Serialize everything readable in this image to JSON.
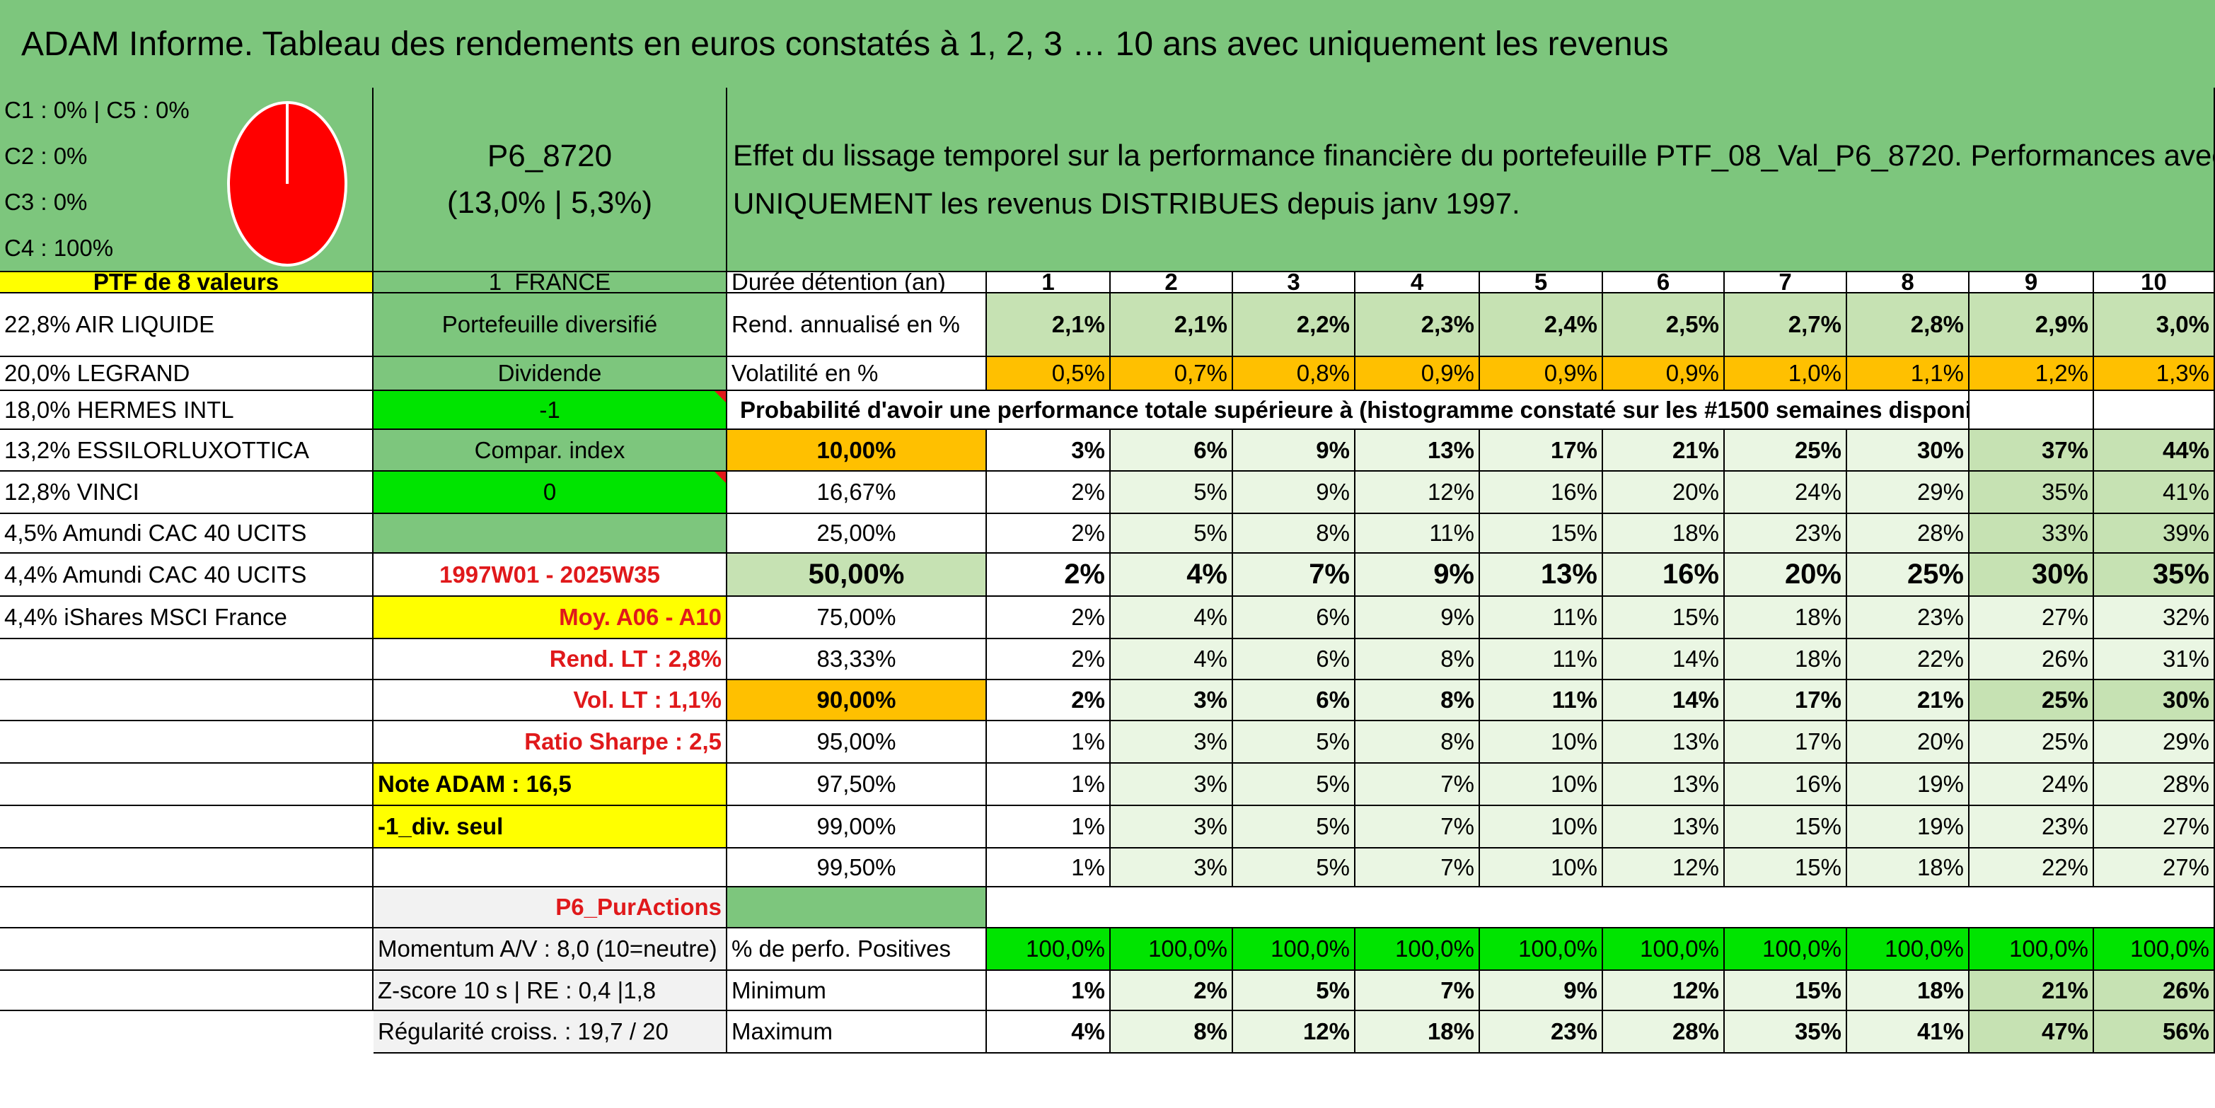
{
  "title": "ADAM Informe. Tableau des rendements en euros constatés à 1, 2, 3 … 10 ans avec uniquement les revenus",
  "colors": {
    "header_green": "#7dc67d",
    "bright_green": "#00e400",
    "light_green": "#c6e2b3",
    "pale_green": "#eaf6e3",
    "yellow": "#ffff00",
    "orange": "#ffc000",
    "red": "#e0191b",
    "pie_red": "#ff0000"
  },
  "pie": {
    "label": "C4 : 100%",
    "value_percent": 100
  },
  "class_lines": [
    "C1 : 0% | C5 : 0%",
    "C2 : 0%",
    "C3 : 0%",
    "C4 : 100%"
  ],
  "portfolio": {
    "code": "P6_8720",
    "perf": "(13,0% | 5,3%)"
  },
  "description": [
    "Effet du lissage temporel sur la performance financière du portefeuille PTF_08_Val_P6_8720. Performances avec",
    "UNIQUEMENT les revenus DISTRIBUES depuis janv 1997."
  ],
  "ptf_header": "PTF de 8 valeurs",
  "holdings": [
    "22,8% AIR LIQUIDE",
    "20,0% LEGRAND",
    "18,0% HERMES INTL",
    "13,2% ESSILORLUXOTTICA",
    "12,8% VINCI",
    "4,5% Amundi CAC 40 UCITS",
    "4,4% Amundi CAC 40 UCITS",
    "4,4% iShares MSCI France"
  ],
  "info": {
    "country": "1_FRANCE",
    "type": "Portefeuille diversifié",
    "dividende_label": "Dividende",
    "dividende_value": "-1",
    "compar_label": "Compar. index",
    "compar_value": "0",
    "period": "1997W01 - 2025W35",
    "moy": "Moy. A06 - A10",
    "rend_lt": "Rend. LT : 2,8%",
    "vol_lt": "Vol. LT : 1,1%",
    "sharpe": "Ratio Sharpe : 2,5",
    "note": "Note ADAM : 16,5",
    "div_seul": "-1_div. seul",
    "pur": "P6_PurActions",
    "momentum": "Momentum A/V : 8,0 (10=neutre)",
    "zscore": "Z-score 10 s | RE : 0,4 |1,8",
    "regularite": "Régularité croiss. : 19,7 / 20"
  },
  "table": {
    "duration_label": "Durée détention (an)",
    "years": [
      "1",
      "2",
      "3",
      "4",
      "5",
      "6",
      "7",
      "8",
      "9",
      "10"
    ],
    "rend_label": "Rend. annualisé en %",
    "rend": [
      "2,1%",
      "2,1%",
      "2,2%",
      "2,3%",
      "2,4%",
      "2,5%",
      "2,7%",
      "2,8%",
      "2,9%",
      "3,0%"
    ],
    "vol_label": "Volatilité en %",
    "vol": [
      "0,5%",
      "0,7%",
      "0,8%",
      "0,9%",
      "0,9%",
      "0,9%",
      "1,0%",
      "1,1%",
      "1,2%",
      "1,3%"
    ],
    "prob_title": "Probabilité d'avoir une performance totale supérieure à (histogramme constaté sur les #1500 semaines disponibles)",
    "prob_rows": [
      {
        "p": "10,00%",
        "v": [
          "3%",
          "6%",
          "9%",
          "13%",
          "17%",
          "21%",
          "25%",
          "30%",
          "37%",
          "44%"
        ]
      },
      {
        "p": "16,67%",
        "v": [
          "2%",
          "5%",
          "9%",
          "12%",
          "16%",
          "20%",
          "24%",
          "29%",
          "35%",
          "41%"
        ]
      },
      {
        "p": "25,00%",
        "v": [
          "2%",
          "5%",
          "8%",
          "11%",
          "15%",
          "18%",
          "23%",
          "28%",
          "33%",
          "39%"
        ]
      },
      {
        "p": "50,00%",
        "v": [
          "2%",
          "4%",
          "7%",
          "9%",
          "13%",
          "16%",
          "20%",
          "25%",
          "30%",
          "35%"
        ]
      },
      {
        "p": "75,00%",
        "v": [
          "2%",
          "4%",
          "6%",
          "9%",
          "11%",
          "15%",
          "18%",
          "23%",
          "27%",
          "32%"
        ]
      },
      {
        "p": "83,33%",
        "v": [
          "2%",
          "4%",
          "6%",
          "8%",
          "11%",
          "14%",
          "18%",
          "22%",
          "26%",
          "31%"
        ]
      },
      {
        "p": "90,00%",
        "v": [
          "2%",
          "3%",
          "6%",
          "8%",
          "11%",
          "14%",
          "17%",
          "21%",
          "25%",
          "30%"
        ]
      },
      {
        "p": "95,00%",
        "v": [
          "1%",
          "3%",
          "5%",
          "8%",
          "10%",
          "13%",
          "17%",
          "20%",
          "25%",
          "29%"
        ]
      },
      {
        "p": "97,50%",
        "v": [
          "1%",
          "3%",
          "5%",
          "7%",
          "10%",
          "13%",
          "16%",
          "19%",
          "24%",
          "28%"
        ]
      },
      {
        "p": "99,00%",
        "v": [
          "1%",
          "3%",
          "5%",
          "7%",
          "10%",
          "13%",
          "15%",
          "19%",
          "23%",
          "27%"
        ]
      },
      {
        "p": "99,50%",
        "v": [
          "1%",
          "3%",
          "5%",
          "7%",
          "10%",
          "12%",
          "15%",
          "18%",
          "22%",
          "27%"
        ]
      }
    ],
    "pos_label": "% de perfo. Positives",
    "pos": [
      "100,0%",
      "100,0%",
      "100,0%",
      "100,0%",
      "100,0%",
      "100,0%",
      "100,0%",
      "100,0%",
      "100,0%",
      "100,0%"
    ],
    "min_label": "Minimum",
    "min": [
      "1%",
      "2%",
      "5%",
      "7%",
      "9%",
      "12%",
      "15%",
      "18%",
      "21%",
      "26%"
    ],
    "max_label": "Maximum",
    "max": [
      "4%",
      "8%",
      "12%",
      "18%",
      "23%",
      "28%",
      "35%",
      "41%",
      "47%",
      "56%"
    ]
  }
}
